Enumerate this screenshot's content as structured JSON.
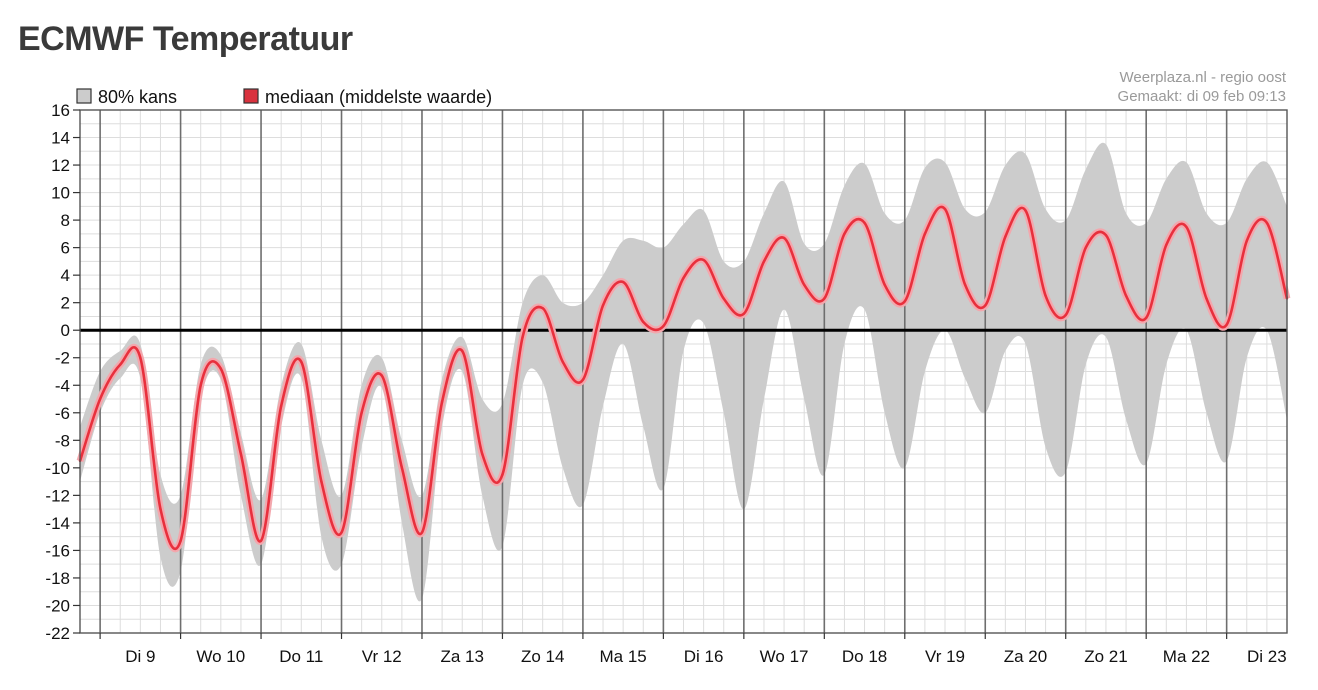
{
  "page": {
    "title": "ECMWF Temperatuur"
  },
  "credit": {
    "line1": "Weerplaza.nl - regio oost",
    "line2": "Gemaakt: di 09 feb 09:13"
  },
  "chart_data": {
    "type": "area",
    "title": "ECMWF Temperatuur",
    "xlabel": "",
    "ylabel": "",
    "ylim": [
      -22,
      16
    ],
    "yticks": [
      16,
      14,
      12,
      10,
      8,
      6,
      4,
      2,
      0,
      -2,
      -4,
      -6,
      -8,
      -10,
      -12,
      -14,
      -16,
      -18,
      -20,
      -22
    ],
    "xlim": [
      -0.75,
      14.25
    ],
    "day_labels": [
      "Di 9",
      "Wo 10",
      "Do 11",
      "Vr 12",
      "Za 13",
      "Zo 14",
      "Ma 15",
      "Di 16",
      "Wo 17",
      "Do 18",
      "Vr 19",
      "Za 20",
      "Zo 21",
      "Ma 22",
      "Di 23"
    ],
    "grid": true,
    "zero_line": true,
    "legend_position": "top-left",
    "legend": [
      {
        "label": "80% kans",
        "color": "#cccccc"
      },
      {
        "label": "mediaan (middelste waarde)",
        "color": "#d9323e"
      }
    ],
    "colors": {
      "band": "#cccccc",
      "median": "#e8303d",
      "median_glow": "#f3a7ad",
      "zero": "#000000",
      "grid_minor": "#dddddd",
      "grid_major": "#6e6e6e"
    },
    "series": [
      {
        "name": "mediaan (middelste waarde)",
        "x": [
          -0.75,
          -0.5,
          -0.25,
          0,
          0.25,
          0.5,
          0.75,
          1,
          1.25,
          1.5,
          1.75,
          2,
          2.25,
          2.5,
          2.75,
          3,
          3.25,
          3.5,
          3.75,
          4,
          4.25,
          4.5,
          4.75,
          5,
          5.25,
          5.5,
          5.75,
          6,
          6.25,
          6.5,
          6.75,
          7,
          7.25,
          7.5,
          7.75,
          8,
          8.25,
          8.5,
          8.75,
          9,
          9.25,
          9.5,
          9.75,
          10,
          10.25,
          10.5,
          10.75,
          11,
          11.25,
          11.5,
          11.75,
          12,
          12.25,
          12.5,
          12.75,
          13,
          13.25,
          13.5,
          13.75,
          14,
          14.25
        ],
        "values": [
          -9.5,
          -5,
          -2.5,
          -2,
          -13,
          -15.3,
          -4,
          -2.8,
          -9,
          -15.3,
          -5.5,
          -2.3,
          -11,
          -14.7,
          -6,
          -3.3,
          -10,
          -14.7,
          -5.2,
          -1.5,
          -9,
          -10.5,
          -0.5,
          1.6,
          -2.3,
          -3.6,
          1.8,
          3.5,
          0.6,
          0.3,
          3.8,
          5.1,
          2.3,
          1.2,
          5,
          6.7,
          3.3,
          2.3,
          7,
          7.8,
          3.3,
          2.1,
          7,
          8.8,
          3.3,
          1.8,
          6.8,
          8.7,
          2.5,
          1.1,
          6,
          6.9,
          2.5,
          0.9,
          6.2,
          7.5,
          2.3,
          0.4,
          6.5,
          7.8,
          2.3
        ]
      },
      {
        "name": "80% kans",
        "x": [
          -0.75,
          -0.5,
          -0.25,
          0,
          0.25,
          0.5,
          0.75,
          1,
          1.25,
          1.5,
          1.75,
          2,
          2.25,
          2.5,
          2.75,
          3,
          3.25,
          3.5,
          3.75,
          4,
          4.25,
          4.5,
          4.75,
          5,
          5.25,
          5.5,
          5.75,
          6,
          6.25,
          6.5,
          6.75,
          7,
          7.25,
          7.5,
          7.75,
          8,
          8.25,
          8.5,
          8.75,
          9,
          9.25,
          9.5,
          9.75,
          10,
          10.25,
          10.5,
          10.75,
          11,
          11.25,
          11.5,
          11.75,
          12,
          12.25,
          12.5,
          12.75,
          13,
          13.25,
          13.5,
          13.75,
          14,
          14.25
        ],
        "low": [
          -11,
          -6,
          -3.5,
          -3.5,
          -16.5,
          -17.5,
          -5,
          -3.6,
          -12,
          -17,
          -7,
          -3.5,
          -15,
          -17,
          -8.5,
          -4.2,
          -14,
          -19.5,
          -7,
          -3,
          -12,
          -15.7,
          -4,
          -3.8,
          -10,
          -12.7,
          -5.5,
          -1,
          -7,
          -11.5,
          -1.5,
          0.5,
          -6,
          -13,
          -5,
          1.5,
          -5,
          -10.5,
          -1,
          1.5,
          -6,
          -10,
          -3,
          0,
          -3.5,
          -6,
          -1.5,
          -1,
          -8.5,
          -10.3,
          -2.5,
          -0.5,
          -6.5,
          -9.7,
          -2.5,
          0,
          -6,
          -9.5,
          -2,
          0,
          -6.5
        ],
        "high": [
          -7,
          -3,
          -1.5,
          -1,
          -10.5,
          -12,
          -2.5,
          -1.8,
          -7.5,
          -12.3,
          -4,
          -1,
          -8,
          -12,
          -4,
          -2,
          -8,
          -12,
          -3.5,
          -0.5,
          -5,
          -5.3,
          2,
          4,
          2,
          2,
          4,
          6.5,
          6.5,
          6,
          7.7,
          8.7,
          5,
          5,
          8.5,
          10.8,
          6.3,
          6.3,
          10.5,
          12.1,
          8.5,
          8,
          11.8,
          12.2,
          8.8,
          8.6,
          12,
          12.8,
          8.8,
          8,
          11.7,
          13.5,
          8.5,
          7.8,
          11,
          12.2,
          8.5,
          7.8,
          11,
          12.2,
          9
        ]
      }
    ]
  }
}
